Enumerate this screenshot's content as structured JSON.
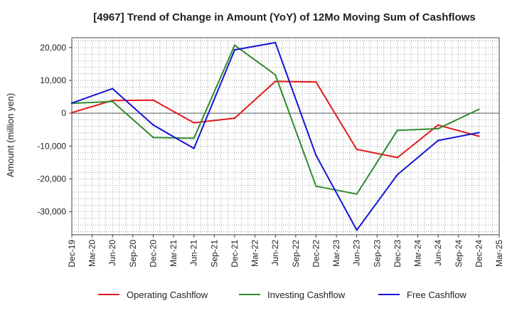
{
  "chart_data": {
    "type": "line",
    "title": "[4967]  Trend of Change in Amount (YoY) of 12Mo Moving Sum of Cashflows",
    "xlabel": "",
    "ylabel": "Amount (million yen)",
    "ylim": [
      -37000,
      23000
    ],
    "yticks": [
      20000,
      10000,
      0,
      -10000,
      -20000,
      -30000
    ],
    "ytick_labels": [
      "20,000",
      "10,000",
      "0",
      "-10,000",
      "-20,000",
      "-30,000"
    ],
    "categories": [
      "Dec-19",
      "Mar-20",
      "Jun-20",
      "Sep-20",
      "Dec-20",
      "Mar-21",
      "Jun-21",
      "Sep-21",
      "Dec-21",
      "Mar-22",
      "Jun-22",
      "Sep-22",
      "Dec-22",
      "Mar-23",
      "Jun-23",
      "Sep-23",
      "Dec-23",
      "Mar-24",
      "Jun-24",
      "Sep-24",
      "Dec-24",
      "Mar-25"
    ],
    "grid": true,
    "legend_position": "bottom",
    "series": [
      {
        "name": "Operating Cashflow",
        "color": "#e31a1c",
        "points": [
          {
            "x": "Dec-19",
            "y": 200
          },
          {
            "x": "Jun-20",
            "y": 3900
          },
          {
            "x": "Dec-20",
            "y": 4000
          },
          {
            "x": "Jun-21",
            "y": -2900
          },
          {
            "x": "Dec-21",
            "y": -1500
          },
          {
            "x": "Jun-22",
            "y": 9700
          },
          {
            "x": "Dec-22",
            "y": 9500
          },
          {
            "x": "Jun-23",
            "y": -11000
          },
          {
            "x": "Dec-23",
            "y": -13500
          },
          {
            "x": "Jun-24",
            "y": -3600
          },
          {
            "x": "Dec-24",
            "y": -7000
          }
        ]
      },
      {
        "name": "Investing Cashflow",
        "color": "#2e8b2e",
        "points": [
          {
            "x": "Dec-19",
            "y": 3000
          },
          {
            "x": "Jun-20",
            "y": 3600
          },
          {
            "x": "Dec-20",
            "y": -7400
          },
          {
            "x": "Jun-21",
            "y": -7600
          },
          {
            "x": "Dec-21",
            "y": 20700
          },
          {
            "x": "Jun-22",
            "y": 11700
          },
          {
            "x": "Dec-22",
            "y": -22200
          },
          {
            "x": "Jun-23",
            "y": -24600
          },
          {
            "x": "Dec-23",
            "y": -5200
          },
          {
            "x": "Jun-24",
            "y": -4700
          },
          {
            "x": "Dec-24",
            "y": 1200
          }
        ]
      },
      {
        "name": "Free Cashflow",
        "color": "#1414d6",
        "points": [
          {
            "x": "Dec-19",
            "y": 3100
          },
          {
            "x": "Jun-20",
            "y": 7500
          },
          {
            "x": "Dec-20",
            "y": -3600
          },
          {
            "x": "Jun-21",
            "y": -10700
          },
          {
            "x": "Dec-21",
            "y": 19300
          },
          {
            "x": "Jun-22",
            "y": 21500
          },
          {
            "x": "Dec-22",
            "y": -12800
          },
          {
            "x": "Jun-23",
            "y": -35600
          },
          {
            "x": "Dec-23",
            "y": -18700
          },
          {
            "x": "Jun-24",
            "y": -8300
          },
          {
            "x": "Dec-24",
            "y": -5900
          }
        ]
      }
    ]
  }
}
